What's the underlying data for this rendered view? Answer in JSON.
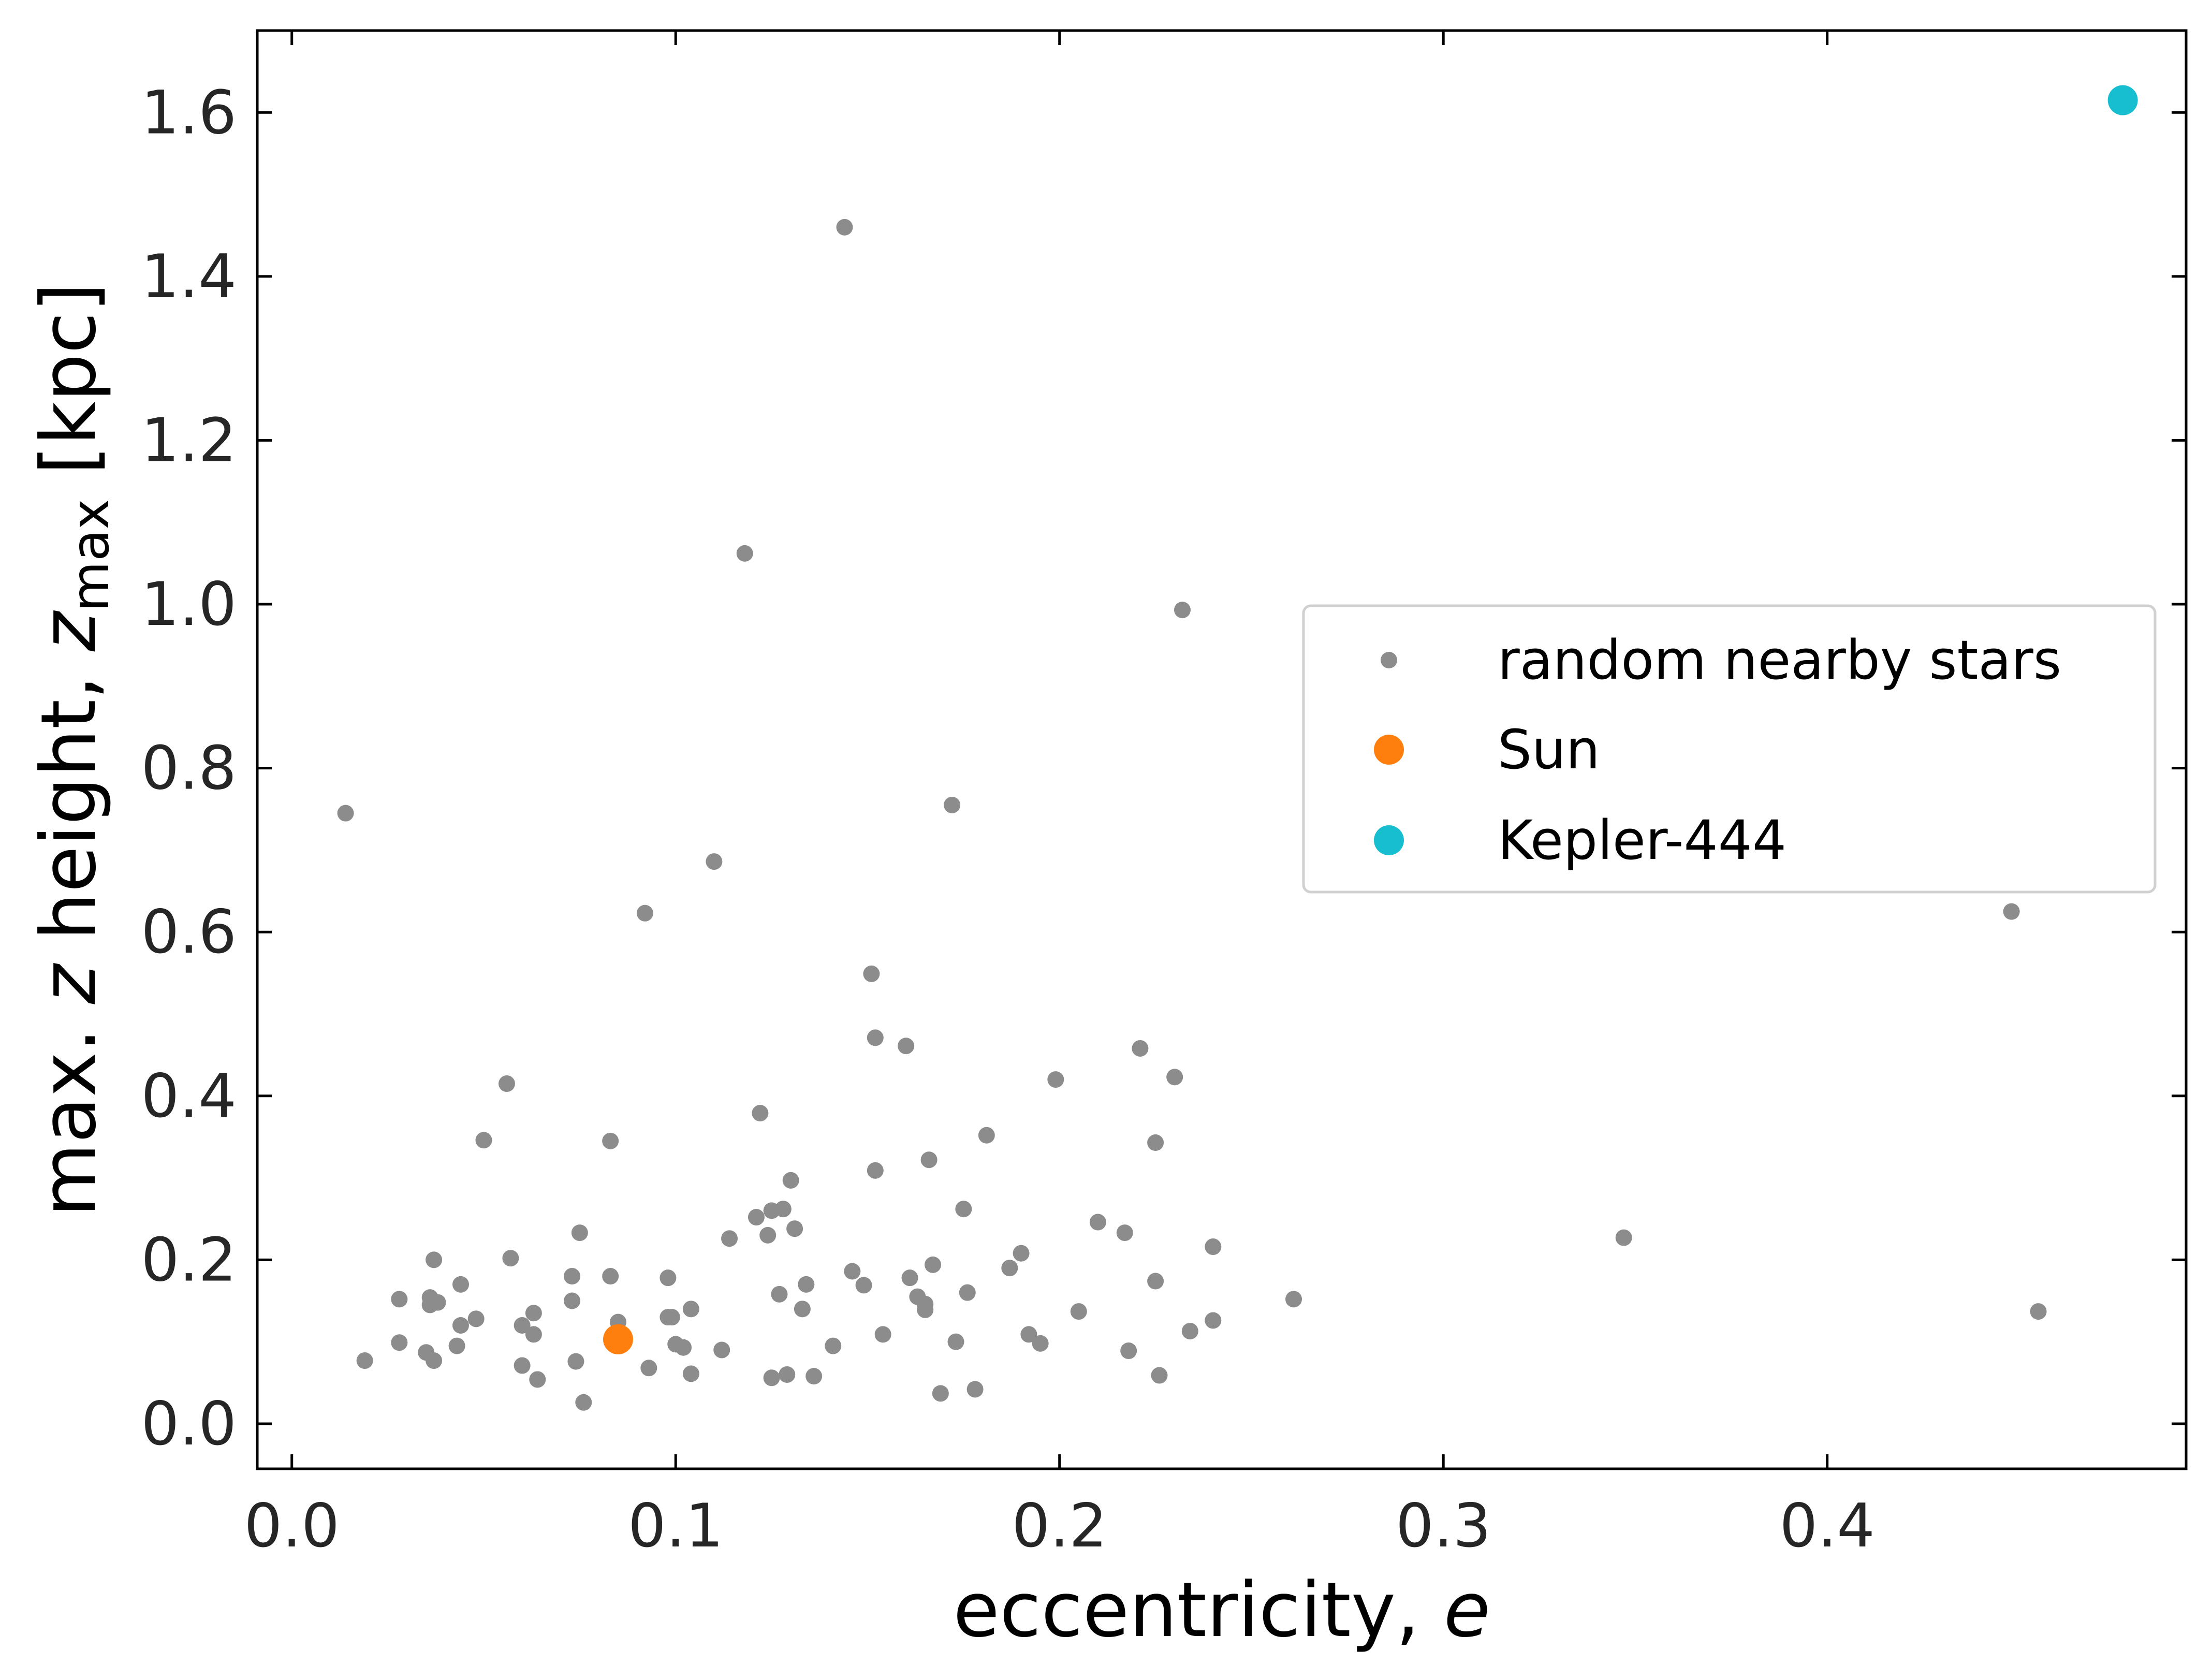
{
  "chart_data": {
    "type": "scatter",
    "xlabel": {
      "text": "eccentricity, ",
      "var": "e"
    },
    "ylabel": {
      "prefix": "max. ",
      "var": "z",
      "mid": " height, ",
      "var2": "z",
      "sub": "max",
      "suffix": " [kpc]"
    },
    "xlim": [
      -0.009,
      0.4935
    ],
    "ylim": [
      -0.055,
      1.7
    ],
    "x_ticks": [
      0.0,
      0.1,
      0.2,
      0.3,
      0.4
    ],
    "x_tick_labels": [
      "0.0",
      "0.1",
      "0.2",
      "0.3",
      "0.4"
    ],
    "y_ticks": [
      0.0,
      0.2,
      0.4,
      0.6,
      0.8,
      1.0,
      1.2,
      1.4,
      1.6
    ],
    "y_tick_labels": [
      "0.0",
      "0.2",
      "0.4",
      "0.6",
      "0.8",
      "1.0",
      "1.2",
      "1.4",
      "1.6"
    ],
    "legend_position": "center-right",
    "series": [
      {
        "name": "random nearby stars",
        "color": "#8c8c8c",
        "marker": "small-circle",
        "points": [
          [
            0.014,
            0.745
          ],
          [
            0.019,
            0.077
          ],
          [
            0.028,
            0.152
          ],
          [
            0.028,
            0.099
          ],
          [
            0.035,
            0.087
          ],
          [
            0.036,
            0.154
          ],
          [
            0.036,
            0.145
          ],
          [
            0.037,
            0.2
          ],
          [
            0.037,
            0.077
          ],
          [
            0.038,
            0.148
          ],
          [
            0.043,
            0.095
          ],
          [
            0.044,
            0.12
          ],
          [
            0.044,
            0.17
          ],
          [
            0.048,
            0.128
          ],
          [
            0.05,
            0.346
          ],
          [
            0.056,
            0.415
          ],
          [
            0.057,
            0.202
          ],
          [
            0.06,
            0.071
          ],
          [
            0.06,
            0.12
          ],
          [
            0.063,
            0.135
          ],
          [
            0.063,
            0.109
          ],
          [
            0.064,
            0.054
          ],
          [
            0.073,
            0.15
          ],
          [
            0.073,
            0.18
          ],
          [
            0.074,
            0.076
          ],
          [
            0.075,
            0.233
          ],
          [
            0.076,
            0.026
          ],
          [
            0.083,
            0.345
          ],
          [
            0.083,
            0.18
          ],
          [
            0.085,
            0.124
          ],
          [
            0.093,
            0.068
          ],
          [
            0.092,
            0.623
          ],
          [
            0.098,
            0.178
          ],
          [
            0.098,
            0.13
          ],
          [
            0.099,
            0.13
          ],
          [
            0.1,
            0.097
          ],
          [
            0.102,
            0.093
          ],
          [
            0.104,
            0.14
          ],
          [
            0.104,
            0.061
          ],
          [
            0.11,
            0.686
          ],
          [
            0.112,
            0.09
          ],
          [
            0.114,
            0.226
          ],
          [
            0.118,
            1.062
          ],
          [
            0.121,
            0.252
          ],
          [
            0.122,
            0.379
          ],
          [
            0.124,
            0.23
          ],
          [
            0.125,
            0.26
          ],
          [
            0.125,
            0.056
          ],
          [
            0.127,
            0.158
          ],
          [
            0.128,
            0.262
          ],
          [
            0.129,
            0.06
          ],
          [
            0.13,
            0.297
          ],
          [
            0.131,
            0.238
          ],
          [
            0.133,
            0.14
          ],
          [
            0.134,
            0.17
          ],
          [
            0.136,
            0.058
          ],
          [
            0.141,
            0.095
          ],
          [
            0.144,
            1.46
          ],
          [
            0.146,
            0.186
          ],
          [
            0.149,
            0.169
          ],
          [
            0.151,
            0.549
          ],
          [
            0.152,
            0.471
          ],
          [
            0.152,
            0.309
          ],
          [
            0.154,
            0.109
          ],
          [
            0.16,
            0.461
          ],
          [
            0.161,
            0.178
          ],
          [
            0.163,
            0.155
          ],
          [
            0.165,
            0.146
          ],
          [
            0.165,
            0.139
          ],
          [
            0.166,
            0.322
          ],
          [
            0.167,
            0.194
          ],
          [
            0.169,
            0.037
          ],
          [
            0.172,
            0.755
          ],
          [
            0.173,
            0.1
          ],
          [
            0.175,
            0.262
          ],
          [
            0.176,
            0.16
          ],
          [
            0.178,
            0.042
          ],
          [
            0.181,
            0.352
          ],
          [
            0.187,
            0.19
          ],
          [
            0.19,
            0.208
          ],
          [
            0.192,
            0.109
          ],
          [
            0.195,
            0.098
          ],
          [
            0.199,
            0.42
          ],
          [
            0.205,
            0.137
          ],
          [
            0.21,
            0.246
          ],
          [
            0.217,
            0.233
          ],
          [
            0.218,
            0.089
          ],
          [
            0.221,
            0.458
          ],
          [
            0.225,
            0.343
          ],
          [
            0.225,
            0.174
          ],
          [
            0.226,
            0.059
          ],
          [
            0.23,
            0.423
          ],
          [
            0.232,
            0.993
          ],
          [
            0.234,
            0.113
          ],
          [
            0.24,
            0.216
          ],
          [
            0.24,
            0.126
          ],
          [
            0.261,
            0.152
          ],
          [
            0.347,
            0.227
          ],
          [
            0.448,
            0.625
          ],
          [
            0.455,
            0.137
          ]
        ]
      },
      {
        "name": "Sun",
        "color": "#ff7f0e",
        "marker": "large-circle",
        "points": [
          [
            0.085,
            0.103
          ]
        ]
      },
      {
        "name": "Kepler-444",
        "color": "#17becf",
        "marker": "large-circle",
        "points": [
          [
            0.477,
            1.615
          ]
        ]
      }
    ]
  }
}
